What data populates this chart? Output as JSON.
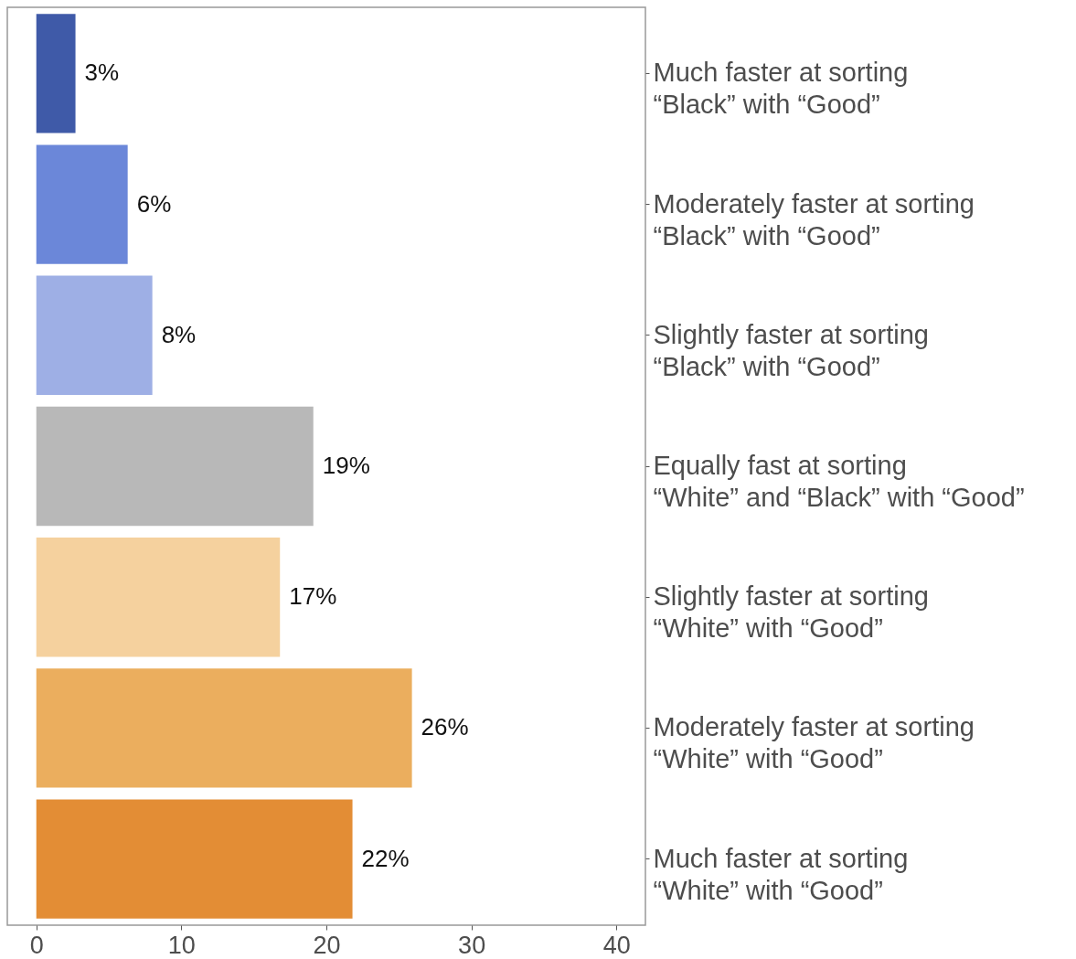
{
  "chart_data": {
    "type": "bar",
    "orientation": "horizontal",
    "categories": [
      "Much faster at sorting\n “Black” with “Good”",
      "Moderately faster at sorting\n “Black” with “Good”",
      "Slightly faster at sorting\n “Black” with “Good”",
      "Equally fast at sorting\n “White” and “Black” with “Good”",
      "Slightly faster at sorting\n “White” with “Good”",
      "Moderately faster at sorting\n “White” with “Good”",
      "Much faster at sorting\n “White” with “Good”"
    ],
    "values": [
      2.7,
      6.3,
      8.0,
      19.1,
      16.8,
      25.9,
      21.8
    ],
    "value_labels": [
      "3%",
      "6%",
      "8%",
      "19%",
      "17%",
      "26%",
      "22%"
    ],
    "colors": [
      "#3f5aa8",
      "#6b87d9",
      "#9eafe5",
      "#b8b8b8",
      "#f5d19e",
      "#ebae5e",
      "#e38d35"
    ],
    "xlim": [
      -2,
      42
    ],
    "xticks": [
      0,
      10,
      20,
      30,
      40
    ],
    "grid": false
  }
}
